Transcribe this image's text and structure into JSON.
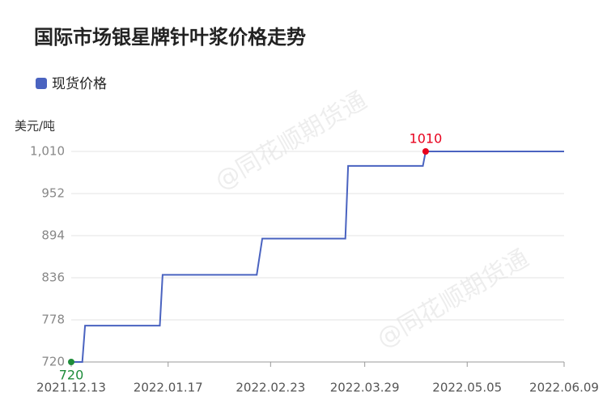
{
  "chart_data": {
    "type": "line",
    "title": "国际市场银星牌针叶浆价格走势",
    "y_unit": "美元/吨",
    "watermark": "@同花顺期货通",
    "x": [
      "2021.12.13",
      "2021.12.17",
      "2021.12.18",
      "2022.01.14",
      "2022.01.15",
      "2022.02.18",
      "2022.02.20",
      "2022.03.22",
      "2022.03.23",
      "2022.04.19",
      "2022.04.20",
      "2022.06.09"
    ],
    "series": [
      {
        "name": "现货价格",
        "color": "#4a63c0",
        "values": [
          720,
          720,
          770,
          770,
          840,
          840,
          890,
          890,
          990,
          990,
          1010,
          1010
        ],
        "value_labels": [
          "720",
          null,
          null,
          null,
          null,
          null,
          null,
          null,
          null,
          null,
          "1010",
          null
        ]
      }
    ],
    "label_colors": [
      "#1e8c3a",
      "#e8001c"
    ],
    "xlim": [
      "2021.12.13",
      "2022.06.09"
    ],
    "xticks": [
      "2021.12.13",
      "2022.01.17",
      "2022.02.23",
      "2022.03.29",
      "2022.05.05",
      "2022.06.09"
    ],
    "ylim": [
      720,
      1010
    ],
    "yticks": [
      720,
      778,
      836,
      894,
      952,
      {
        "value": 1010,
        "label": "1,010"
      }
    ],
    "grid": true,
    "legend": "top-left"
  }
}
